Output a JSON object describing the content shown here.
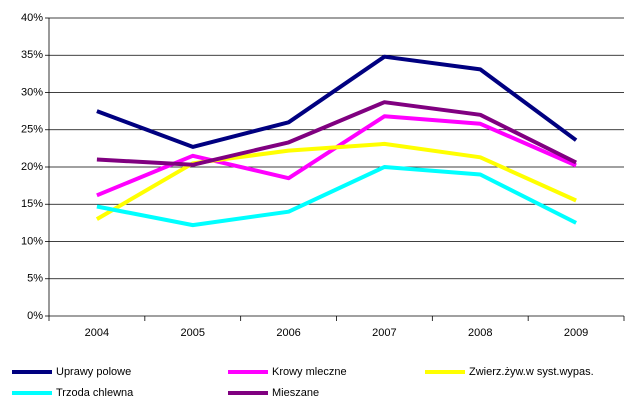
{
  "chart_data": {
    "type": "line",
    "categories": [
      "2004",
      "2005",
      "2006",
      "2007",
      "2008",
      "2009"
    ],
    "series": [
      {
        "name": "Uprawy polowe",
        "color": "#000080",
        "values": [
          27.5,
          22.7,
          26,
          34.8,
          33.1,
          23.6
        ]
      },
      {
        "name": "Krowy mleczne",
        "color": "#ff00ff",
        "values": [
          16.2,
          21.5,
          18.5,
          26.8,
          25.8,
          20.2
        ]
      },
      {
        "name": "Zwierz.żyw.w syst.wypas.",
        "color": "#ffff00",
        "values": [
          13,
          20.5,
          22.2,
          23.1,
          21.3,
          15.5
        ]
      },
      {
        "name": "Trzoda chlewna",
        "color": "#00ffff",
        "values": [
          14.7,
          12.2,
          14,
          20,
          19,
          12.5
        ]
      },
      {
        "name": "Mieszane",
        "color": "#800080",
        "values": [
          21,
          20.3,
          23.3,
          28.7,
          27,
          20.6
        ]
      }
    ],
    "ylim": [
      0,
      40
    ],
    "yticks": [
      {
        "value": 0,
        "label": "0%"
      },
      {
        "value": 5,
        "label": "5%"
      },
      {
        "value": 10,
        "label": "10%"
      },
      {
        "value": 15,
        "label": "15%"
      },
      {
        "value": 20,
        "label": "20%"
      },
      {
        "value": 25,
        "label": "25%"
      },
      {
        "value": 30,
        "label": "30%"
      },
      {
        "value": 35,
        "label": "35%"
      },
      {
        "value": 40,
        "label": "40%"
      }
    ],
    "grid": true
  }
}
